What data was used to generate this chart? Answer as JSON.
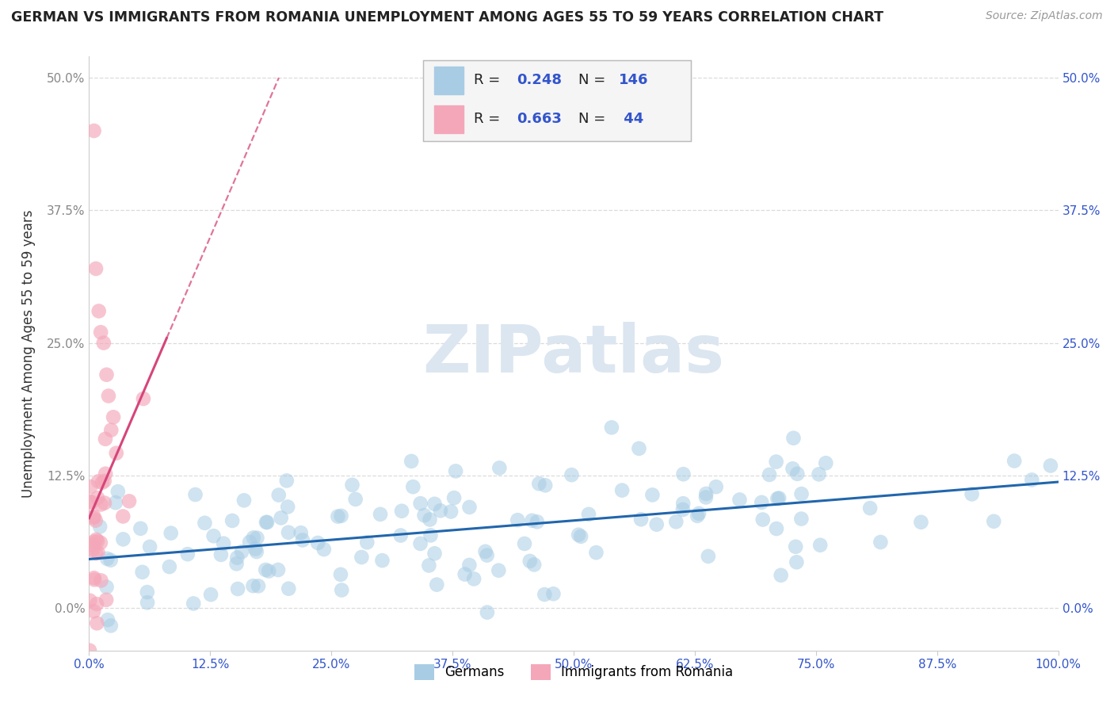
{
  "title": "GERMAN VS IMMIGRANTS FROM ROMANIA UNEMPLOYMENT AMONG AGES 55 TO 59 YEARS CORRELATION CHART",
  "source": "Source: ZipAtlas.com",
  "ylabel": "Unemployment Among Ages 55 to 59 years",
  "xlim": [
    0,
    1.0
  ],
  "ylim": [
    -0.04,
    0.52
  ],
  "xtick_labels": [
    "0.0%",
    "12.5%",
    "25.0%",
    "37.5%",
    "50.0%",
    "62.5%",
    "75.0%",
    "87.5%",
    "100.0%"
  ],
  "xtick_vals": [
    0.0,
    0.125,
    0.25,
    0.375,
    0.5,
    0.625,
    0.75,
    0.875,
    1.0
  ],
  "ytick_labels": [
    "0.0%",
    "12.5%",
    "25.0%",
    "37.5%",
    "50.0%"
  ],
  "ytick_vals": [
    0.0,
    0.125,
    0.25,
    0.375,
    0.5
  ],
  "blue_R": 0.248,
  "blue_N": 146,
  "pink_R": 0.663,
  "pink_N": 44,
  "blue_color": "#a8cce4",
  "pink_color": "#f4a7b9",
  "blue_line_color": "#2166ac",
  "pink_line_color": "#d6457a",
  "title_color": "#222222",
  "accent_color": "#3355cc",
  "background_color": "#ffffff",
  "grid_color": "#cccccc",
  "watermark_color": "#dce6f0",
  "legend_bg": "#f5f5f5"
}
